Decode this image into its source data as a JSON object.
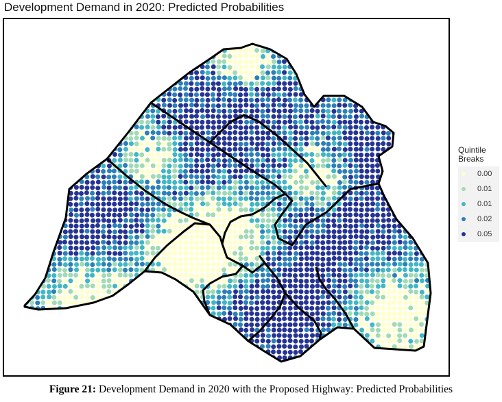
{
  "chart_data": {
    "type": "scatter",
    "title": "Development Demand in 2020: Predicted Probabilities",
    "legend": {
      "title_line1": "Quintile",
      "title_line2": "Breaks",
      "placement": "right",
      "entries": [
        {
          "label": "0.00",
          "color": "#ffffcc"
        },
        {
          "label": "0.01",
          "color": "#a1dab4"
        },
        {
          "label": "0.01",
          "color": "#41b6c4"
        },
        {
          "label": "0.02",
          "color": "#2c7fb8"
        },
        {
          "label": "0.05",
          "color": "#253494"
        }
      ]
    },
    "grid": false
  },
  "caption": {
    "label": "Figure 21:",
    "text": " Development Demand in 2020 with the Proposed Highway: Predicted Probabilities"
  }
}
